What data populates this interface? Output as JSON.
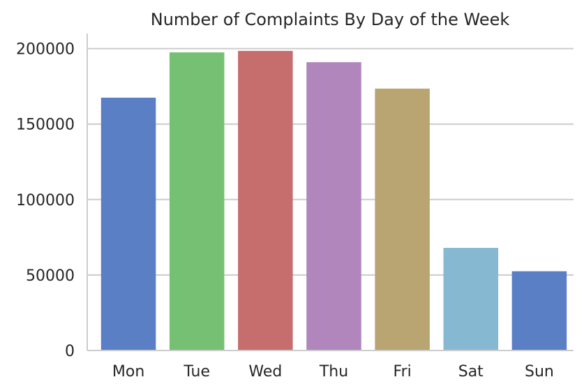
{
  "chart_data": {
    "type": "bar",
    "title": "Number of Complaints By Day of the Week",
    "xlabel": "",
    "ylabel": "",
    "categories": [
      "Mon",
      "Tue",
      "Wed",
      "Thu",
      "Fri",
      "Sat",
      "Sun"
    ],
    "values": [
      167500,
      197500,
      198500,
      191000,
      173500,
      68000,
      52500
    ],
    "colors": [
      "#5a7fc4",
      "#76c074",
      "#c66e6d",
      "#b086bd",
      "#b9a571",
      "#86b9d1",
      "#5a7fc4"
    ],
    "ylim": [
      0,
      210000
    ],
    "yticks": [
      0,
      50000,
      100000,
      150000,
      200000
    ],
    "ytick_labels": [
      "0",
      "50000",
      "100000",
      "150000",
      "200000"
    ],
    "grid": "horizontal",
    "legend": "none"
  }
}
